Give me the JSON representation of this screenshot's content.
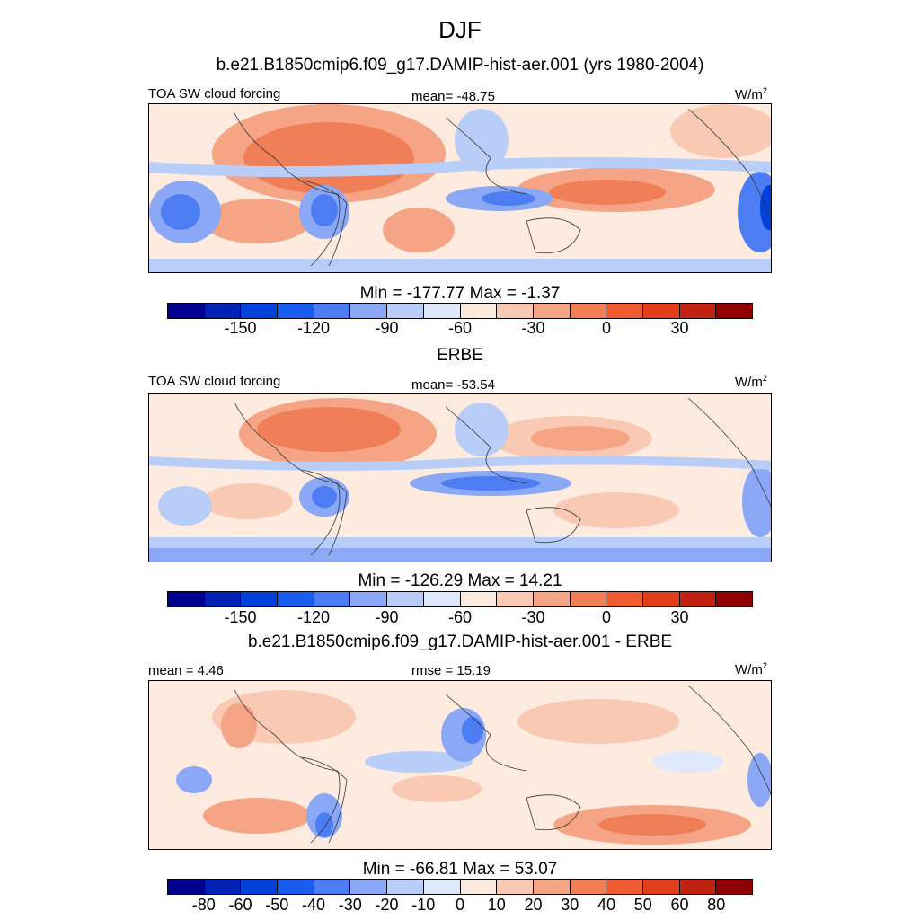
{
  "title": "DJF",
  "palette": [
    "#00008f",
    "#0021b5",
    "#0042d9",
    "#1a5cf0",
    "#4d7df2",
    "#8aa8f5",
    "#b8cdf8",
    "#dfe9fb",
    "#fdebe0",
    "#f9c9b3",
    "#f5a585",
    "#f07e56",
    "#ee5c2f",
    "#e23e1a",
    "#c22212",
    "#8f0000"
  ],
  "panels": [
    {
      "subtitle": "b.e21.B1850cmip6.f09_g17.DAMIP-hist-aer.001 (yrs 1980-2004)",
      "left_label": "TOA SW cloud forcing",
      "center_label": "mean= -48.75",
      "units": "W/m",
      "units_sup": "2",
      "minmax": "Min = -177.77 Max =  -1.37",
      "ticks": [
        "-150",
        "-120",
        "-90",
        "-60",
        "-30",
        "0",
        "30"
      ],
      "tick_boundaries": [
        2,
        4,
        6,
        8,
        10,
        12,
        14
      ]
    },
    {
      "subtitle": "ERBE",
      "left_label": "TOA SW cloud forcing",
      "center_label": "mean= -53.54",
      "units": "W/m",
      "units_sup": "2",
      "minmax": "Min = -126.29 Max =  14.21",
      "ticks": [
        "-150",
        "-120",
        "-90",
        "-60",
        "-30",
        "0",
        "30"
      ],
      "tick_boundaries": [
        2,
        4,
        6,
        8,
        10,
        12,
        14
      ]
    },
    {
      "subtitle": "b.e21.B1850cmip6.f09_g17.DAMIP-hist-aer.001 - ERBE",
      "left_label": "mean =   4.46",
      "center_label": "rmse =  15.19",
      "units": "W/m",
      "units_sup": "2",
      "minmax": "Min = -66.81 Max =  53.07",
      "ticks": [
        "-80",
        "-60",
        "-50",
        "-40",
        "-30",
        "-20",
        "-10",
        "0",
        "10",
        "20",
        "30",
        "40",
        "50",
        "60",
        "80"
      ],
      "tick_boundaries": [
        1,
        2,
        3,
        4,
        5,
        6,
        7,
        8,
        9,
        10,
        11,
        12,
        13,
        14,
        15
      ]
    }
  ]
}
